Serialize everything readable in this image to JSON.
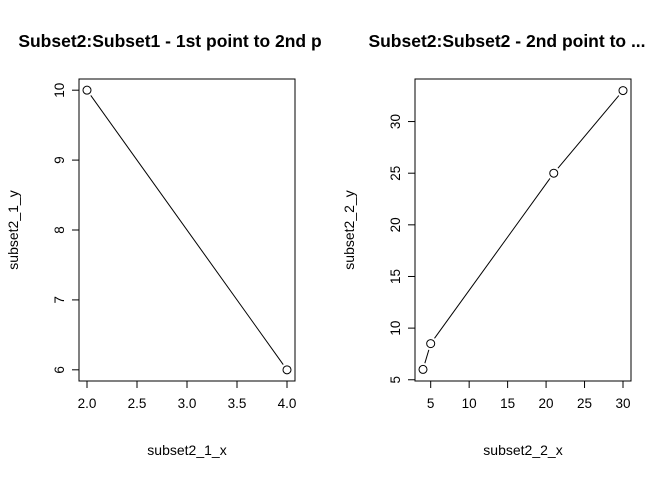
{
  "chart_data": [
    {
      "type": "line",
      "title": "Subset2:Subset1 - 1st point to 2nd p",
      "xlabel": "subset2_1_x",
      "ylabel": "subset2_1_y",
      "x": [
        2.0,
        4.0
      ],
      "y": [
        10,
        6
      ],
      "xlim": [
        1.92,
        4.08
      ],
      "ylim": [
        5.84,
        10.16
      ],
      "xticks": [
        2.0,
        2.5,
        3.0,
        3.5,
        4.0
      ],
      "xtick_labels": [
        "2.0",
        "2.5",
        "3.0",
        "3.5",
        "4.0"
      ],
      "yticks": [
        6,
        7,
        8,
        9,
        10
      ],
      "ytick_labels": [
        "6",
        "7",
        "8",
        "9",
        "10"
      ],
      "marker": "open-circle",
      "grid": false,
      "color": "#000000"
    },
    {
      "type": "line",
      "title": "Subset2:Subset2 - 2nd point to ...",
      "xlabel": "subset2_2_x",
      "ylabel": "subset2_2_y",
      "x": [
        4,
        5,
        21,
        30
      ],
      "y": [
        6,
        8.5,
        25,
        33
      ],
      "xlim": [
        2.96,
        31.04
      ],
      "ylim": [
        4.88,
        34.12
      ],
      "xticks": [
        5,
        10,
        15,
        20,
        25,
        30
      ],
      "xtick_labels": [
        "5",
        "10",
        "15",
        "20",
        "25",
        "30"
      ],
      "yticks": [
        5,
        10,
        15,
        20,
        25,
        30
      ],
      "ytick_labels": [
        "5",
        "10",
        "15",
        "20",
        "25",
        "30"
      ],
      "marker": "open-circle",
      "grid": false,
      "color": "#000000"
    }
  ]
}
